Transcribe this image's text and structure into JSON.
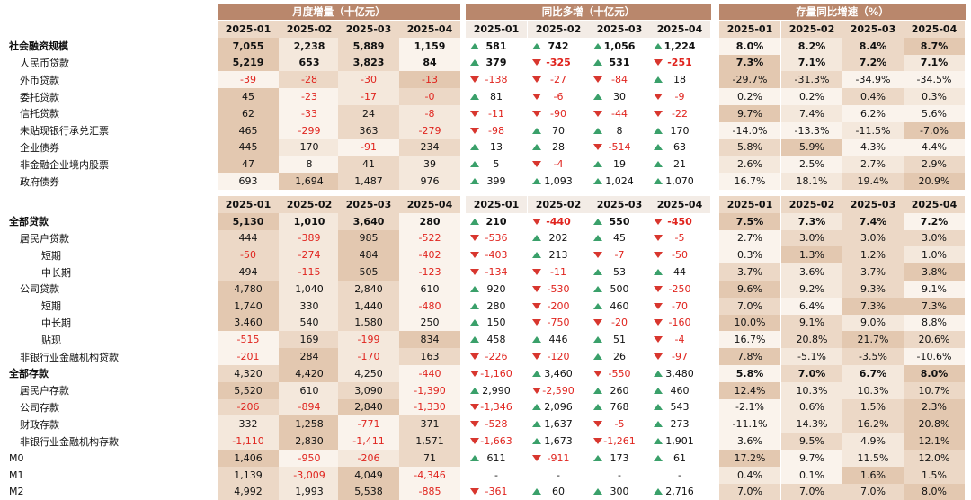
{
  "colors": {
    "header": "#b9876c",
    "c1": "#e3c8b0",
    "c2": "#ecd8c6",
    "c3": "#f4e8dc",
    "c4": "#faf3ec",
    "neg": "#e0241e",
    "up": "#3aa06a",
    "down": "#d8362e"
  },
  "headers": [
    "月度增量（十亿元）",
    "同比多增（十亿元）",
    "存量同比增速（%）"
  ],
  "months": [
    "2025-01",
    "2025-02",
    "2025-03",
    "2025-04"
  ],
  "table1": [
    {
      "label": "社会融资规模",
      "indent": 0,
      "bold": true,
      "m": [
        "7,055",
        "2,238",
        "5,889",
        "1,159"
      ],
      "mb": [
        true,
        true,
        true,
        true
      ],
      "y": [
        [
          "up",
          "581"
        ],
        [
          "up",
          "742"
        ],
        [
          "up",
          "1,056"
        ],
        [
          "up",
          "1,224"
        ]
      ],
      "yb": [
        true,
        true,
        true,
        true
      ],
      "g": [
        "8.0%",
        "8.2%",
        "8.4%",
        "8.7%"
      ],
      "gb": [
        true,
        true,
        true,
        true
      ],
      "gs": [
        3,
        2,
        1,
        0
      ]
    },
    {
      "label": "人民币贷款",
      "indent": 1,
      "m": [
        "5,219",
        "653",
        "3,823",
        "84"
      ],
      "mb": [
        true,
        true,
        true,
        true
      ],
      "y": [
        [
          "up",
          "379"
        ],
        [
          "down",
          "-325"
        ],
        [
          "up",
          "531"
        ],
        [
          "down",
          "-251"
        ]
      ],
      "yb": [
        true,
        true,
        true,
        true
      ],
      "g": [
        "7.3%",
        "7.1%",
        "7.2%",
        "7.1%"
      ],
      "gb": [
        true,
        true,
        true,
        true
      ],
      "gs": [
        0,
        2,
        1,
        2
      ]
    },
    {
      "label": "外币贷款",
      "indent": 1,
      "m": [
        "-39",
        "-28",
        "-30",
        "-13"
      ],
      "y": [
        [
          "down",
          "-138"
        ],
        [
          "down",
          "-27"
        ],
        [
          "down",
          "-84"
        ],
        [
          "up",
          "18"
        ]
      ],
      "g": [
        "-29.7%",
        "-31.3%",
        "-34.9%",
        "-34.5%"
      ],
      "gs": [
        0,
        1,
        3,
        3
      ]
    },
    {
      "label": "委托贷款",
      "indent": 1,
      "m": [
        "45",
        "-23",
        "-17",
        "-0"
      ],
      "y": [
        [
          "up",
          "81"
        ],
        [
          "down",
          "-6"
        ],
        [
          "up",
          "30"
        ],
        [
          "down",
          "-9"
        ]
      ],
      "g": [
        "0.2%",
        "0.2%",
        "0.4%",
        "0.3%"
      ],
      "gs": [
        3,
        3,
        1,
        2
      ]
    },
    {
      "label": "信托贷款",
      "indent": 1,
      "m": [
        "62",
        "-33",
        "24",
        "-8"
      ],
      "y": [
        [
          "down",
          "-11"
        ],
        [
          "down",
          "-90"
        ],
        [
          "down",
          "-44"
        ],
        [
          "down",
          "-22"
        ]
      ],
      "g": [
        "9.7%",
        "7.4%",
        "6.2%",
        "5.6%"
      ],
      "gs": [
        0,
        2,
        3,
        3
      ]
    },
    {
      "label": "未贴现银行承兑汇票",
      "indent": 1,
      "m": [
        "465",
        "-299",
        "363",
        "-279"
      ],
      "y": [
        [
          "down",
          "-98"
        ],
        [
          "up",
          "70"
        ],
        [
          "up",
          "8"
        ],
        [
          "up",
          "170"
        ]
      ],
      "g": [
        "-14.0%",
        "-13.3%",
        "-11.5%",
        "-7.0%"
      ],
      "gs": [
        3,
        3,
        2,
        0
      ]
    },
    {
      "label": "企业债券",
      "indent": 1,
      "m": [
        "445",
        "170",
        "-91",
        "234"
      ],
      "y": [
        [
          "up",
          "13"
        ],
        [
          "up",
          "28"
        ],
        [
          "down",
          "-514"
        ],
        [
          "up",
          "63"
        ]
      ],
      "g": [
        "5.8%",
        "5.9%",
        "4.3%",
        "4.4%"
      ],
      "gs": [
        1,
        0,
        3,
        3
      ]
    },
    {
      "label": "非金融企业境内股票",
      "indent": 1,
      "m": [
        "47",
        "8",
        "41",
        "39"
      ],
      "y": [
        [
          "up",
          "5"
        ],
        [
          "down",
          "-4"
        ],
        [
          "up",
          "19"
        ],
        [
          "up",
          "21"
        ]
      ],
      "g": [
        "2.6%",
        "2.5%",
        "2.7%",
        "2.9%"
      ],
      "gs": [
        2,
        3,
        2,
        1
      ]
    },
    {
      "label": "政府债券",
      "indent": 1,
      "m": [
        "693",
        "1,694",
        "1,487",
        "976"
      ],
      "y": [
        [
          "up",
          "399"
        ],
        [
          "up",
          "1,093"
        ],
        [
          "up",
          "1,024"
        ],
        [
          "up",
          "1,070"
        ]
      ],
      "g": [
        "16.7%",
        "18.1%",
        "19.4%",
        "20.9%"
      ],
      "gs": [
        3,
        2,
        1,
        0
      ]
    }
  ],
  "table2": [
    {
      "label": "全部贷款",
      "indent": 0,
      "bold": true,
      "m": [
        "5,130",
        "1,010",
        "3,640",
        "280"
      ],
      "mb": [
        true,
        true,
        true,
        true
      ],
      "y": [
        [
          "up",
          "210"
        ],
        [
          "down",
          "-440"
        ],
        [
          "up",
          "550"
        ],
        [
          "down",
          "-450"
        ]
      ],
      "yb": [
        true,
        true,
        true,
        true
      ],
      "g": [
        "7.5%",
        "7.3%",
        "7.4%",
        "7.2%"
      ],
      "gb": [
        true,
        true,
        true,
        true
      ],
      "gs": [
        0,
        2,
        1,
        3
      ]
    },
    {
      "label": "居民户贷款",
      "indent": 1,
      "m": [
        "444",
        "-389",
        "985",
        "-522"
      ],
      "y": [
        [
          "down",
          "-536"
        ],
        [
          "up",
          "202"
        ],
        [
          "up",
          "45"
        ],
        [
          "down",
          "-5"
        ]
      ],
      "g": [
        "2.7%",
        "3.0%",
        "3.0%",
        "3.0%"
      ],
      "gs": [
        3,
        1,
        1,
        1
      ]
    },
    {
      "label": "短期",
      "indent": 2,
      "m": [
        "-50",
        "-274",
        "484",
        "-402"
      ],
      "y": [
        [
          "down",
          "-403"
        ],
        [
          "up",
          "213"
        ],
        [
          "down",
          "-7"
        ],
        [
          "down",
          "-50"
        ]
      ],
      "g": [
        "0.3%",
        "1.3%",
        "1.2%",
        "1.0%"
      ],
      "gs": [
        3,
        0,
        1,
        2
      ]
    },
    {
      "label": "中长期",
      "indent": 2,
      "m": [
        "494",
        "-115",
        "505",
        "-123"
      ],
      "y": [
        [
          "down",
          "-134"
        ],
        [
          "down",
          "-11"
        ],
        [
          "up",
          "53"
        ],
        [
          "up",
          "44"
        ]
      ],
      "g": [
        "3.7%",
        "3.6%",
        "3.7%",
        "3.8%"
      ],
      "gs": [
        1,
        2,
        1,
        0
      ]
    },
    {
      "label": "公司贷款",
      "indent": 1,
      "m": [
        "4,780",
        "1,040",
        "2,840",
        "610"
      ],
      "y": [
        [
          "up",
          "920"
        ],
        [
          "down",
          "-530"
        ],
        [
          "up",
          "500"
        ],
        [
          "down",
          "-250"
        ]
      ],
      "g": [
        "9.6%",
        "9.2%",
        "9.3%",
        "9.1%"
      ],
      "gs": [
        0,
        2,
        1,
        3
      ]
    },
    {
      "label": "短期",
      "indent": 2,
      "m": [
        "1,740",
        "330",
        "1,440",
        "-480"
      ],
      "y": [
        [
          "up",
          "280"
        ],
        [
          "down",
          "-200"
        ],
        [
          "up",
          "460"
        ],
        [
          "down",
          "-70"
        ]
      ],
      "g": [
        "7.0%",
        "6.4%",
        "7.3%",
        "7.3%"
      ],
      "gs": [
        1,
        3,
        0,
        0
      ]
    },
    {
      "label": "中长期",
      "indent": 2,
      "m": [
        "3,460",
        "540",
        "1,580",
        "250"
      ],
      "y": [
        [
          "up",
          "150"
        ],
        [
          "down",
          "-750"
        ],
        [
          "down",
          "-20"
        ],
        [
          "down",
          "-160"
        ]
      ],
      "g": [
        "10.0%",
        "9.1%",
        "9.0%",
        "8.8%"
      ],
      "gs": [
        0,
        1,
        2,
        3
      ]
    },
    {
      "label": "贴现",
      "indent": 2,
      "m": [
        "-515",
        "169",
        "-199",
        "834"
      ],
      "y": [
        [
          "up",
          "458"
        ],
        [
          "up",
          "446"
        ],
        [
          "up",
          "51"
        ],
        [
          "down",
          "-4"
        ]
      ],
      "g": [
        "16.7%",
        "20.8%",
        "21.7%",
        "20.6%"
      ],
      "gs": [
        3,
        1,
        0,
        1
      ]
    },
    {
      "label": "非银行业金融机构贷款",
      "indent": 1,
      "m": [
        "-201",
        "284",
        "-170",
        "163"
      ],
      "y": [
        [
          "down",
          "-226"
        ],
        [
          "down",
          "-120"
        ],
        [
          "up",
          "26"
        ],
        [
          "down",
          "-97"
        ]
      ],
      "g": [
        "7.8%",
        "-5.1%",
        "-3.5%",
        "-10.6%"
      ],
      "gs": [
        0,
        2,
        1,
        3
      ]
    },
    {
      "label": "全部存款",
      "indent": 0,
      "bold": true,
      "m": [
        "4,320",
        "4,420",
        "4,250",
        "-440"
      ],
      "y": [
        [
          "down",
          "-1,160"
        ],
        [
          "up",
          "3,460"
        ],
        [
          "down",
          "-550"
        ],
        [
          "up",
          "3,480"
        ]
      ],
      "g": [
        "5.8%",
        "7.0%",
        "6.7%",
        "8.0%"
      ],
      "gb": [
        true,
        true,
        true,
        true
      ],
      "gs": [
        3,
        1,
        2,
        0
      ]
    },
    {
      "label": "居民户存款",
      "indent": 1,
      "m": [
        "5,520",
        "610",
        "3,090",
        "-1,390"
      ],
      "y": [
        [
          "up",
          "2,990"
        ],
        [
          "down",
          "-2,590"
        ],
        [
          "up",
          "260"
        ],
        [
          "up",
          "460"
        ]
      ],
      "g": [
        "12.4%",
        "10.3%",
        "10.3%",
        "10.7%"
      ],
      "gs": [
        0,
        2,
        2,
        1
      ]
    },
    {
      "label": "公司存款",
      "indent": 1,
      "m": [
        "-206",
        "-894",
        "2,840",
        "-1,330"
      ],
      "y": [
        [
          "down",
          "-1,346"
        ],
        [
          "up",
          "2,096"
        ],
        [
          "up",
          "768"
        ],
        [
          "up",
          "543"
        ]
      ],
      "g": [
        "-2.1%",
        "0.6%",
        "1.5%",
        "2.3%"
      ],
      "gs": [
        3,
        2,
        1,
        0
      ]
    },
    {
      "label": "财政存款",
      "indent": 1,
      "m": [
        "332",
        "1,258",
        "-771",
        "371"
      ],
      "y": [
        [
          "down",
          "-528"
        ],
        [
          "up",
          "1,637"
        ],
        [
          "down",
          "-5"
        ],
        [
          "up",
          "273"
        ]
      ],
      "g": [
        "-11.1%",
        "14.3%",
        "16.2%",
        "20.8%"
      ],
      "gs": [
        3,
        2,
        1,
        0
      ]
    },
    {
      "label": "非银行业金融机构存款",
      "indent": 1,
      "m": [
        "-1,110",
        "2,830",
        "-1,411",
        "1,571"
      ],
      "y": [
        [
          "down",
          "-1,663"
        ],
        [
          "up",
          "1,673"
        ],
        [
          "down",
          "-1,261"
        ],
        [
          "up",
          "1,901"
        ]
      ],
      "g": [
        "3.6%",
        "9.5%",
        "4.9%",
        "12.1%"
      ],
      "gs": [
        3,
        1,
        2,
        0
      ]
    },
    {
      "label": "M0",
      "indent": 0,
      "m": [
        "1,406",
        "-950",
        "-206",
        "71"
      ],
      "y": [
        [
          "up",
          "611"
        ],
        [
          "down",
          "-911"
        ],
        [
          "up",
          "173"
        ],
        [
          "up",
          "61"
        ]
      ],
      "g": [
        "17.2%",
        "9.7%",
        "11.5%",
        "12.0%"
      ],
      "gs": [
        0,
        3,
        2,
        1
      ]
    },
    {
      "label": "M1",
      "indent": 0,
      "m": [
        "1,139",
        "-3,009",
        "4,049",
        "-4,346"
      ],
      "y": [
        [
          "none",
          "-"
        ],
        [
          "none",
          "-"
        ],
        [
          "none",
          "-"
        ],
        [
          "none",
          "-"
        ]
      ],
      "g": [
        "0.4%",
        "0.1%",
        "1.6%",
        "1.5%"
      ],
      "gs": [
        2,
        3,
        0,
        1
      ]
    },
    {
      "label": "M2",
      "indent": 0,
      "m": [
        "4,992",
        "1,993",
        "5,538",
        "-885"
      ],
      "y": [
        [
          "down",
          "-361"
        ],
        [
          "up",
          "60"
        ],
        [
          "up",
          "300"
        ],
        [
          "up",
          "2,716"
        ]
      ],
      "g": [
        "7.0%",
        "7.0%",
        "7.0%",
        "8.0%"
      ],
      "gs": [
        1,
        1,
        1,
        0
      ]
    }
  ]
}
